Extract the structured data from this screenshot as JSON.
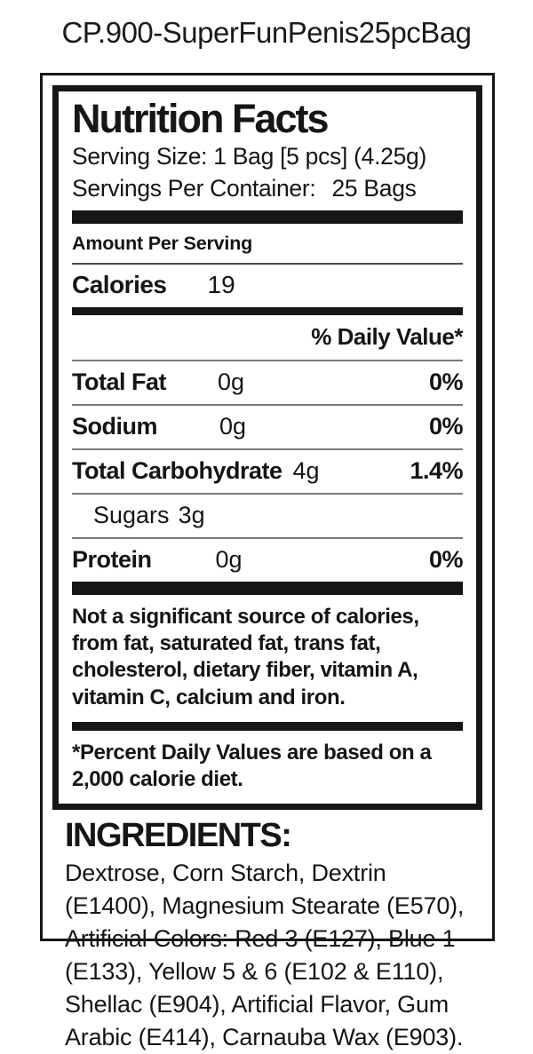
{
  "page": {
    "title": "CP.900-SuperFunPenis25pcBag"
  },
  "nutrition": {
    "header": "Nutrition Facts",
    "serving_size": "Serving Size: 1 Bag [5 pcs] (4.25g)",
    "servings_per_container_label": "Servings Per Container:",
    "servings_per_container_value": "25 Bags",
    "amount_per_serving": "Amount Per Serving",
    "calories_label": "Calories",
    "calories_value": "19",
    "daily_value_header": "% Daily Value*",
    "rows": [
      {
        "label": "Total Fat",
        "amount": "0g",
        "dv": "0%"
      },
      {
        "label": "Sodium",
        "amount": "0g",
        "dv": "0%"
      },
      {
        "label": "Total Carbohydrate",
        "amount": "4g",
        "dv": "1.4%"
      },
      {
        "label": "Sugars",
        "amount": "3g",
        "dv": ""
      },
      {
        "label": "Protein",
        "amount": "0g",
        "dv": "0%"
      }
    ],
    "not_significant_note": "Not a significant source of calories, from fat, saturated fat, trans fat, cholesterol, dietary fiber, vitamin A, vitamin C, calcium and iron.",
    "footnote": "*Percent Daily Values are based on a 2,000 calorie diet."
  },
  "ingredients": {
    "heading": "INGREDIENTS:",
    "text": "Dextrose, Corn Starch, Dextrin (E1400), Magnesium Stearate (E570), Artificial Colors: Red 3 (E127), Blue 1 (E133), Yellow 5 & 6 (E102 & E110), Shellac (E904), Artificial Flavor, Gum Arabic (E414), Carnauba Wax (E903)."
  },
  "colors": {
    "ink": "#161616",
    "background": "#ffffff",
    "rule": "#7a7a7a"
  }
}
